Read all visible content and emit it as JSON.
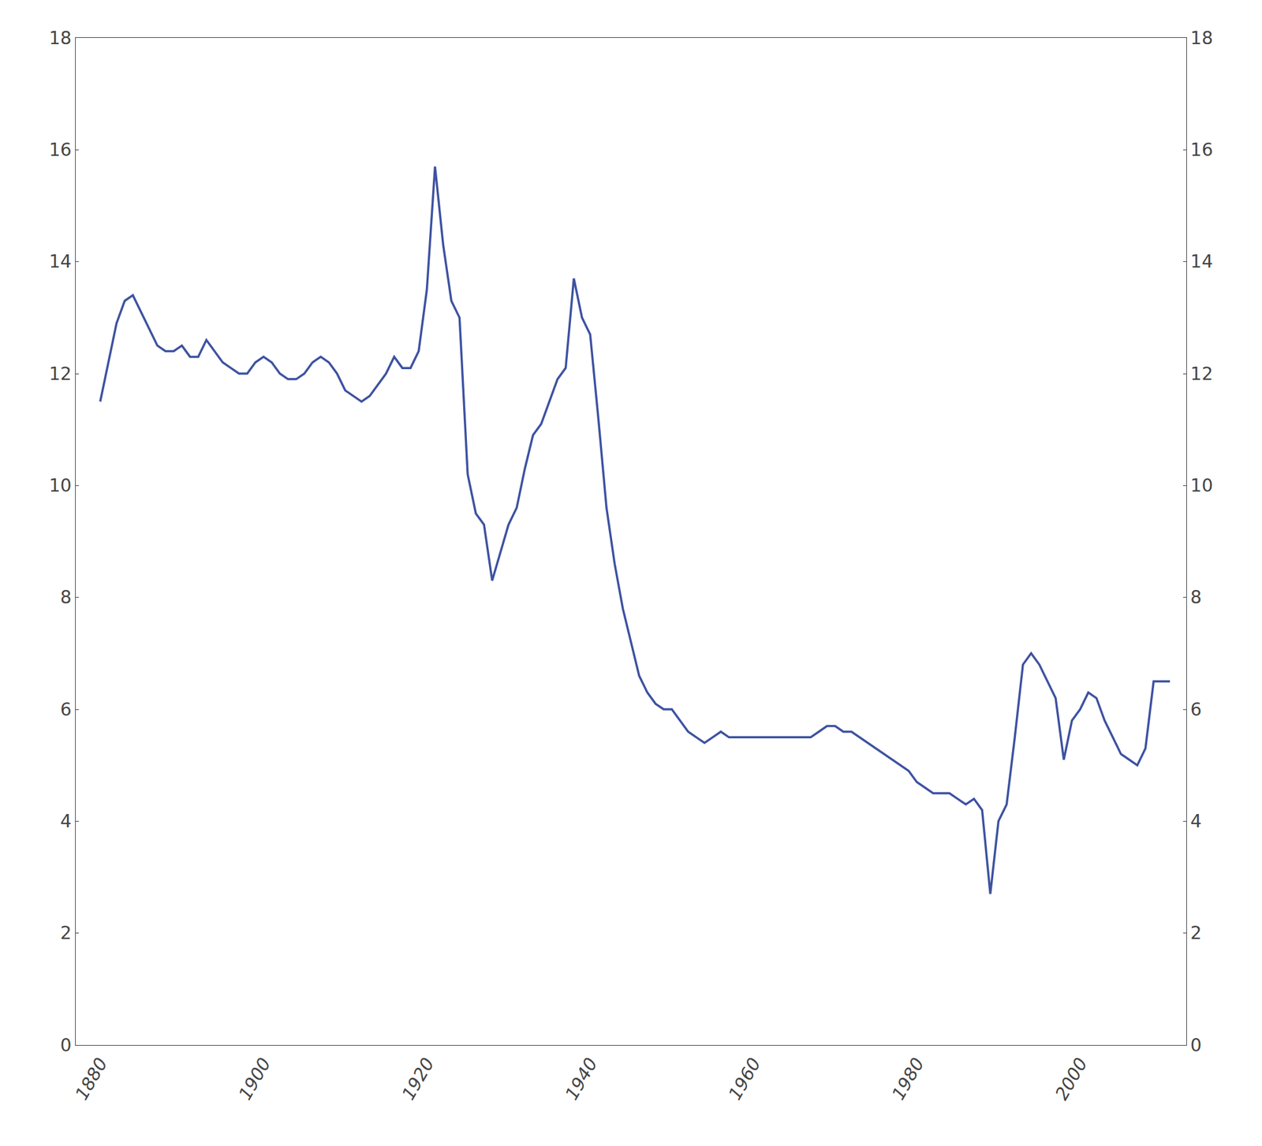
{
  "chart_data": {
    "type": "line",
    "color": "#3D52A1",
    "grid": false,
    "xlim": [
      1877,
      2013
    ],
    "ylim": [
      0,
      18
    ],
    "xticks": [
      1880,
      1900,
      1920,
      1940,
      1960,
      1980,
      2000
    ],
    "yticks": [
      0,
      2,
      4,
      6,
      8,
      10,
      12,
      14,
      16,
      18
    ],
    "y2lim": [
      0,
      18
    ],
    "y2ticks": [
      0,
      2,
      4,
      6,
      8,
      10,
      12,
      14,
      16,
      18
    ],
    "x": [
      1880,
      1881,
      1882,
      1883,
      1884,
      1885,
      1886,
      1887,
      1888,
      1889,
      1890,
      1891,
      1892,
      1893,
      1894,
      1895,
      1896,
      1897,
      1898,
      1899,
      1900,
      1901,
      1902,
      1903,
      1904,
      1905,
      1906,
      1907,
      1908,
      1909,
      1910,
      1911,
      1912,
      1913,
      1914,
      1915,
      1916,
      1917,
      1918,
      1919,
      1920,
      1921,
      1922,
      1923,
      1924,
      1925,
      1926,
      1927,
      1928,
      1929,
      1930,
      1931,
      1932,
      1933,
      1934,
      1935,
      1936,
      1937,
      1938,
      1939,
      1940,
      1941,
      1942,
      1943,
      1944,
      1945,
      1946,
      1947,
      1948,
      1949,
      1950,
      1951,
      1952,
      1953,
      1954,
      1955,
      1956,
      1957,
      1958,
      1959,
      1960,
      1961,
      1962,
      1963,
      1964,
      1965,
      1966,
      1967,
      1968,
      1969,
      1970,
      1971,
      1972,
      1973,
      1974,
      1975,
      1976,
      1977,
      1978,
      1979,
      1980,
      1981,
      1982,
      1983,
      1984,
      1985,
      1986,
      1987,
      1988,
      1989,
      1990,
      1991,
      1992,
      1993,
      1994,
      1995,
      1996,
      1997,
      1998,
      1999,
      2000,
      2001,
      2002,
      2003,
      2004,
      2005,
      2006,
      2007,
      2008,
      2009,
      2010,
      2011
    ],
    "values": [
      11.5,
      12.2,
      12.9,
      13.3,
      13.4,
      13.1,
      12.8,
      12.5,
      12.4,
      12.4,
      12.5,
      12.3,
      12.3,
      12.6,
      12.4,
      12.2,
      12.1,
      12.0,
      12.0,
      12.2,
      12.3,
      12.2,
      12.0,
      11.9,
      11.9,
      12.0,
      12.2,
      12.3,
      12.2,
      12.0,
      11.7,
      11.6,
      11.5,
      11.6,
      11.8,
      12.0,
      12.3,
      12.1,
      12.1,
      12.4,
      13.5,
      15.7,
      14.3,
      13.3,
      13.0,
      10.2,
      9.5,
      9.3,
      8.3,
      8.8,
      9.3,
      9.6,
      10.3,
      10.9,
      11.1,
      11.5,
      11.9,
      12.1,
      13.7,
      13.0,
      12.7,
      11.2,
      9.6,
      8.6,
      7.8,
      7.2,
      6.6,
      6.3,
      6.1,
      6.0,
      6.0,
      5.8,
      5.6,
      5.5,
      5.4,
      5.5,
      5.6,
      5.5,
      5.5,
      5.5,
      5.5,
      5.5,
      5.5,
      5.5,
      5.5,
      5.5,
      5.5,
      5.5,
      5.6,
      5.7,
      5.7,
      5.6,
      5.6,
      5.5,
      5.4,
      5.3,
      5.2,
      5.1,
      5.0,
      4.9,
      4.7,
      4.6,
      4.5,
      4.5,
      4.5,
      4.4,
      4.3,
      4.4,
      4.2,
      2.7,
      4.0,
      4.3,
      5.5,
      6.8,
      7.0,
      6.8,
      6.5,
      6.2,
      5.1,
      5.8,
      6.0,
      6.3,
      6.2,
      5.8,
      5.5,
      5.2,
      5.1,
      5.0,
      5.3,
      6.5,
      6.5,
      6.5
    ]
  }
}
